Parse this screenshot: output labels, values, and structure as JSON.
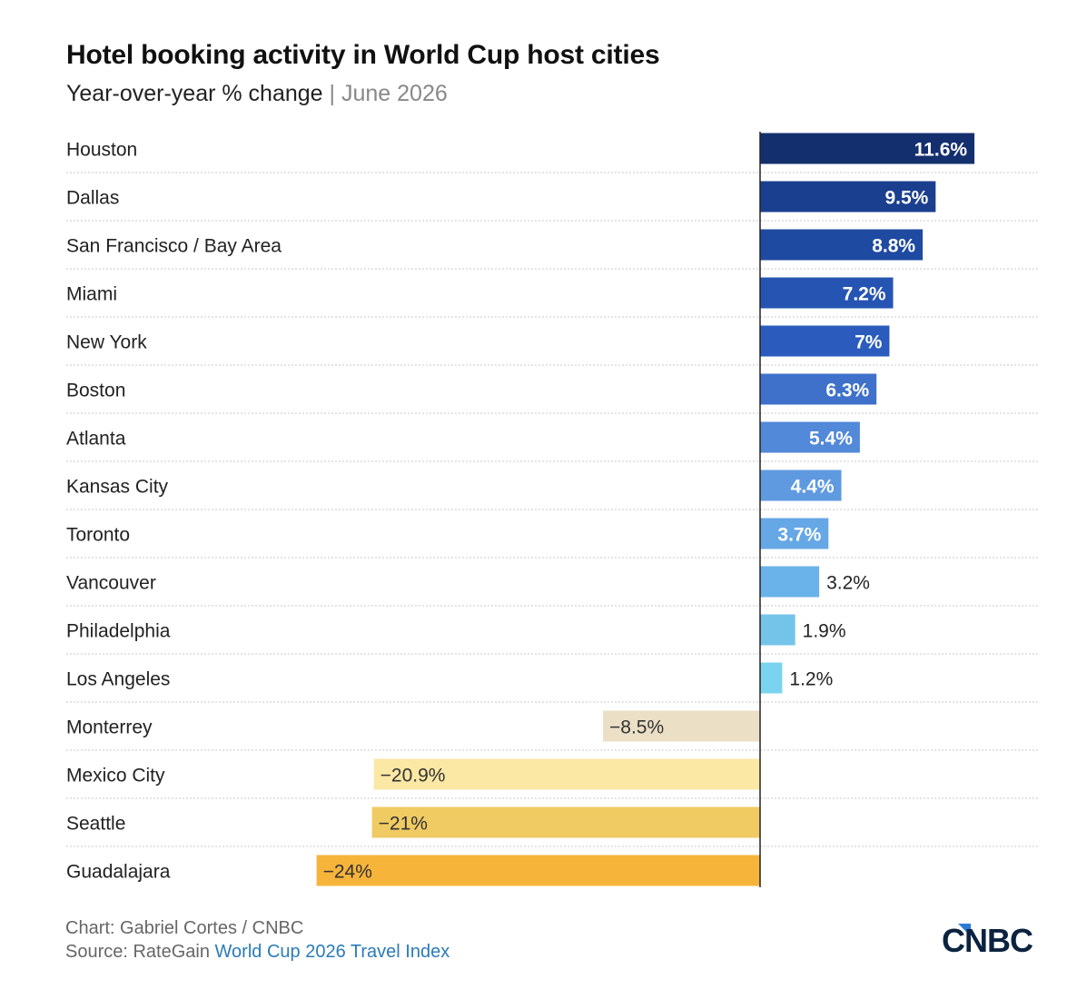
{
  "title": "Hotel booking activity in World Cup host cities",
  "subtitle": {
    "main": "Year-over-year % change",
    "separator": "|",
    "date": "June 2026"
  },
  "footer": {
    "credit": "Chart: Gabriel Cortes / CNBC",
    "source_prefix": "Source: RateGain ",
    "source_link": "World Cup 2026 Travel Index"
  },
  "logo_text": "CNBC",
  "chart_data": {
    "type": "bar",
    "orientation": "horizontal",
    "categories": [
      "Houston",
      "Dallas",
      "San Francisco / Bay Area",
      "Miami",
      "New York",
      "Boston",
      "Atlanta",
      "Kansas City",
      "Toronto",
      "Vancouver",
      "Philadelphia",
      "Los Angeles",
      "Monterrey",
      "Mexico City",
      "Seattle",
      "Guadalajara"
    ],
    "values": [
      11.6,
      9.5,
      8.8,
      7.2,
      7,
      6.3,
      5.4,
      4.4,
      3.7,
      3.2,
      1.9,
      1.2,
      -8.5,
      -20.9,
      -21,
      -24
    ],
    "labels": [
      "11.6%",
      "9.5%",
      "8.8%",
      "7.2%",
      "7%",
      "6.3%",
      "5.4%",
      "4.4%",
      "3.7%",
      "3.2%",
      "1.9%",
      "1.2%",
      "−8.5%",
      "−20.9%",
      "−21%",
      "−24%"
    ],
    "colors": [
      "#142f6e",
      "#1b3f8f",
      "#1f4aa2",
      "#2654b3",
      "#2b5cbd",
      "#3f71ca",
      "#5289d8",
      "#5f9ae0",
      "#66a7e6",
      "#6ab2ea",
      "#74c4ea",
      "#7bd4ef",
      "#ebdfc6",
      "#fbe8a4",
      "#f0cb63",
      "#f6b43a"
    ],
    "inside_label": [
      true,
      true,
      true,
      true,
      true,
      true,
      true,
      true,
      true,
      false,
      false,
      false,
      true,
      true,
      true,
      true
    ],
    "xlim": [
      -24,
      11.6
    ],
    "grid": "dotted row separators"
  }
}
